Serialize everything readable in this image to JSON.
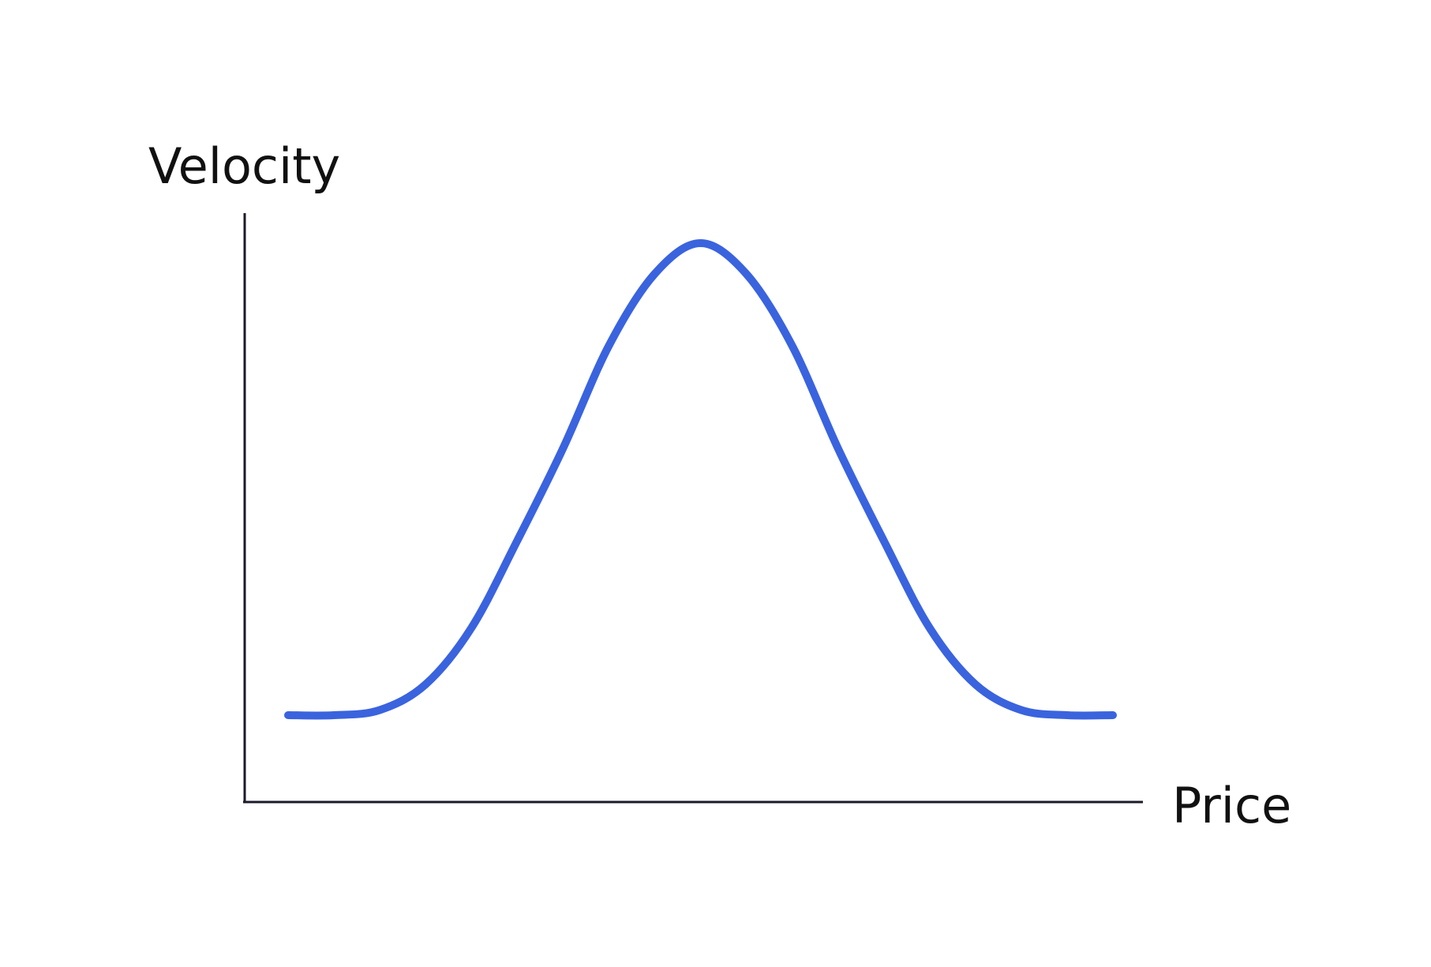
{
  "chart_data": {
    "type": "line",
    "title": "",
    "xlabel": "Price",
    "ylabel": "Velocity",
    "grid": false,
    "legend": "none",
    "series_color": "#3a63de",
    "axis_color": "#1b1b2a",
    "xlim": [
      0,
      100
    ],
    "ylim": [
      0,
      100
    ],
    "series": [
      {
        "x": [
          5,
          10,
          15,
          20,
          25,
          30,
          35,
          40,
          45,
          50,
          55,
          60,
          65,
          70,
          75,
          80,
          85,
          90,
          95
        ],
        "values": [
          8,
          8,
          9,
          14,
          25,
          42,
          60,
          80,
          94,
          100,
          94,
          80,
          60,
          42,
          25,
          14,
          9,
          8,
          8
        ]
      }
    ]
  }
}
